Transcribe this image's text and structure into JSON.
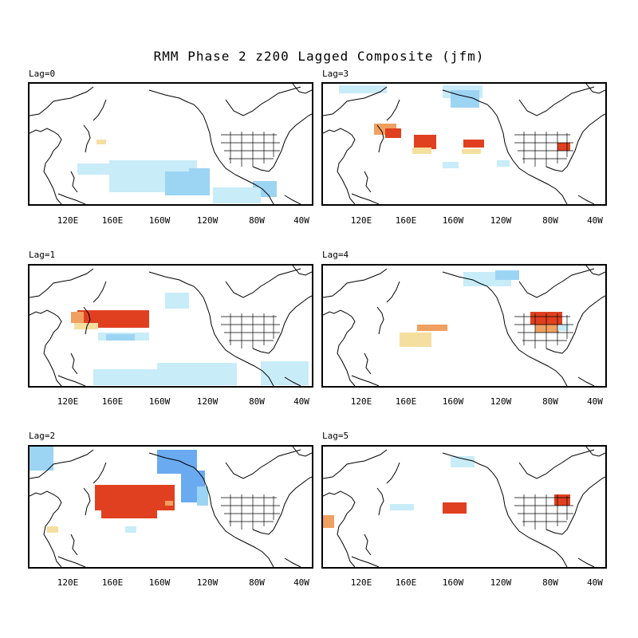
{
  "figure": {
    "title": "RMM Phase 2 z200 Lagged Composite (jfm)",
    "longitude_ticks": [
      "120E",
      "160E",
      "160W",
      "120W",
      "80W",
      "40W"
    ],
    "panels": [
      {
        "id": "lag0",
        "label": "Lag=0"
      },
      {
        "id": "lag3",
        "label": "Lag=3"
      },
      {
        "id": "lag1",
        "label": "Lag=1"
      },
      {
        "id": "lag4",
        "label": "Lag=4"
      },
      {
        "id": "lag2",
        "label": "Lag=2"
      },
      {
        "id": "lag5",
        "label": "Lag=5"
      }
    ]
  },
  "colors": {
    "positive_weak": "#f5dfa0",
    "positive_mid": "#f0a060",
    "positive_strong": "#e04020",
    "negative_weak": "#c8ecf8",
    "negative_mid": "#9cd4f4",
    "negative_strong": "#6aaaf0",
    "coast": "#000000"
  }
}
